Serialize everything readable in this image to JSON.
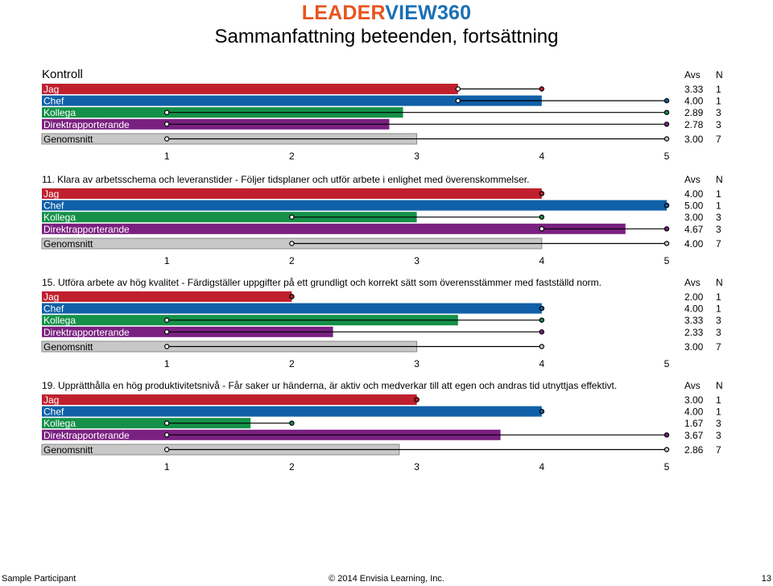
{
  "header": {
    "logo_part1": "LEADER",
    "logo_part2": "VIEW360",
    "title": "Sammanfattning beteenden, fortsättning"
  },
  "colors": {
    "Jag": "#c0202e",
    "Chef": "#1060a8",
    "Kollega": "#149048",
    "Direktrapporterande": "#7a2080",
    "Genomsnitt": "#c8c8c8"
  },
  "column_headers": {
    "avs": "Avs",
    "n": "N"
  },
  "chart_data": [
    {
      "type": "bar",
      "title": "Kontroll",
      "xlim": [
        1,
        5
      ],
      "ticks": [
        "1",
        "2",
        "3",
        "4",
        "5"
      ],
      "categories": [
        "Jag",
        "Chef",
        "Kollega",
        "Direktrapporterande",
        "Genomsnitt"
      ],
      "values": [
        3.33,
        4.0,
        2.89,
        2.78,
        3.0
      ],
      "ranges": [
        [
          3.33,
          4
        ],
        [
          3.33,
          5
        ],
        [
          1,
          5
        ],
        [
          1,
          5
        ],
        [
          1,
          5
        ]
      ],
      "avs": [
        "3.33",
        "4.00",
        "2.89",
        "2.78",
        "3.00"
      ],
      "n": [
        "1",
        "1",
        "3",
        "3",
        "7"
      ]
    },
    {
      "type": "bar",
      "title": "11. Klara av arbetsschema och leveranstider - Följer tidsplaner och utför arbete i enlighet med överenskommelser.",
      "xlim": [
        1,
        5
      ],
      "ticks": [
        "1",
        "2",
        "3",
        "4",
        "5"
      ],
      "categories": [
        "Jag",
        "Chef",
        "Kollega",
        "Direktrapporterande",
        "Genomsnitt"
      ],
      "values": [
        4.0,
        5.0,
        3.0,
        4.67,
        4.0
      ],
      "ranges": [
        [
          4,
          4
        ],
        [
          5,
          5
        ],
        [
          2,
          4
        ],
        [
          4,
          5
        ],
        [
          2,
          5
        ]
      ],
      "avs": [
        "4.00",
        "5.00",
        "3.00",
        "4.67",
        "4.00"
      ],
      "n": [
        "1",
        "1",
        "3",
        "3",
        "7"
      ]
    },
    {
      "type": "bar",
      "title": "15. Utföra arbete av hög kvalitet - Färdigställer uppgifter på ett grundligt och korrekt sätt som överensstämmer med fastställd norm.",
      "xlim": [
        1,
        5
      ],
      "ticks": [
        "1",
        "2",
        "3",
        "4",
        "5"
      ],
      "categories": [
        "Jag",
        "Chef",
        "Kollega",
        "Direktrapporterande",
        "Genomsnitt"
      ],
      "values": [
        2.0,
        4.0,
        3.33,
        2.33,
        3.0
      ],
      "ranges": [
        [
          2,
          2
        ],
        [
          4,
          4
        ],
        [
          1,
          4
        ],
        [
          1,
          4
        ],
        [
          1,
          4
        ]
      ],
      "avs": [
        "2.00",
        "4.00",
        "3.33",
        "2.33",
        "3.00"
      ],
      "n": [
        "1",
        "1",
        "3",
        "3",
        "7"
      ]
    },
    {
      "type": "bar",
      "title": "19. Upprätthålla en hög produktivitetsnivå - Får saker ur händerna, är aktiv och medverkar till att egen och andras tid utnyttjas effektivt.",
      "xlim": [
        1,
        5
      ],
      "ticks": [
        "1",
        "2",
        "3",
        "4",
        "5"
      ],
      "categories": [
        "Jag",
        "Chef",
        "Kollega",
        "Direktrapporterande",
        "Genomsnitt"
      ],
      "values": [
        3.0,
        4.0,
        1.67,
        3.67,
        2.86
      ],
      "ranges": [
        [
          3,
          3
        ],
        [
          4,
          4
        ],
        [
          1,
          2
        ],
        [
          1,
          5
        ],
        [
          1,
          5
        ]
      ],
      "avs": [
        "3.00",
        "4.00",
        "1.67",
        "3.67",
        "2.86"
      ],
      "n": [
        "1",
        "1",
        "3",
        "3",
        "7"
      ]
    }
  ],
  "footer": {
    "left": "Sample Participant",
    "center": "© 2014 Envisia Learning, Inc.",
    "right": "13"
  }
}
